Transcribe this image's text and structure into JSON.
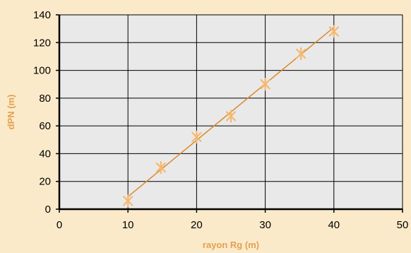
{
  "chart_data": {
    "type": "scatter",
    "title": "",
    "xlabel": "rayon Rg (m)",
    "ylabel": "dPN (m)",
    "xlim": [
      0,
      50
    ],
    "ylim": [
      0,
      140
    ],
    "xticks": [
      0,
      10,
      20,
      30,
      40,
      50
    ],
    "yticks": [
      0,
      20,
      40,
      60,
      80,
      100,
      120,
      140
    ],
    "grid": true,
    "series": [
      {
        "marker": "asterisk",
        "x": [
          10,
          14.8,
          20,
          25,
          30,
          35.2,
          40
        ],
        "y": [
          6,
          30,
          52,
          67,
          90,
          112,
          128
        ]
      }
    ],
    "trendline": {
      "type": "linear",
      "x": [
        10,
        40
      ],
      "y": [
        9,
        131
      ]
    },
    "colors": {
      "background": "#fbeac9",
      "plot_area": "#e9e9e9",
      "grid": "#000000",
      "series": "#f4b870",
      "trendline": "#dc8a2a",
      "axis_title": "#e2a052"
    }
  }
}
